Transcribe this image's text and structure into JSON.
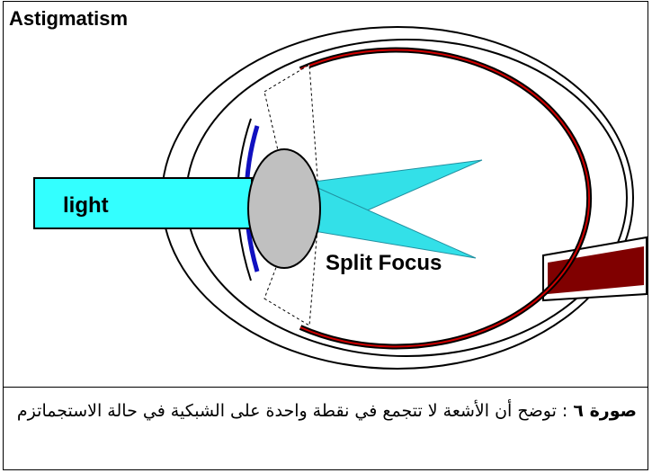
{
  "title": "Astigmatism",
  "labels": {
    "light": "light",
    "focus": "Split Focus"
  },
  "caption": {
    "figure": "صورة ٦",
    "text": ": توضح أن الأشعة لا تتجمع في نقطة واحدة على الشبكية في حالة الاستجماتزم"
  }
}
